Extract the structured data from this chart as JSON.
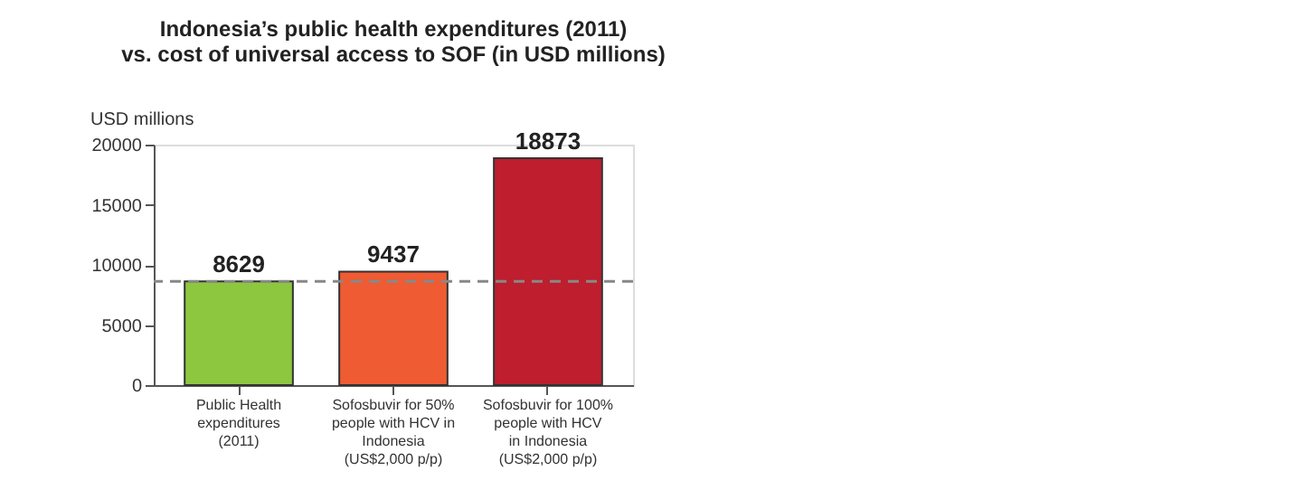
{
  "chart_data": {
    "type": "bar",
    "title": "Indonesia’s public health expenditures (2011)\nvs. cost of universal access to SOF (in USD millions)",
    "ylabel": "USD millions",
    "categories": [
      "Public Health\nexpenditures\n(2011)",
      "Sofosbuvir for 50%\npeople with HCV in\nIndonesia\n(US$2,000 p/p)",
      "Sofosbuvir for 100%\npeople with HCV\nin Indonesia\n(US$2,000 p/p)"
    ],
    "values": [
      8629,
      9437,
      18873
    ],
    "colors": [
      "#8dc63f",
      "#ef5b33",
      "#be1e2d"
    ],
    "ylim": [
      0,
      20000
    ],
    "yticks": [
      0,
      5000,
      10000,
      15000,
      20000
    ],
    "ref_lines": [
      {
        "axis": "y",
        "value": 8629,
        "label": null,
        "color": "#888888",
        "line_style": "dashed"
      }
    ],
    "data_labels": true,
    "grid": false
  }
}
